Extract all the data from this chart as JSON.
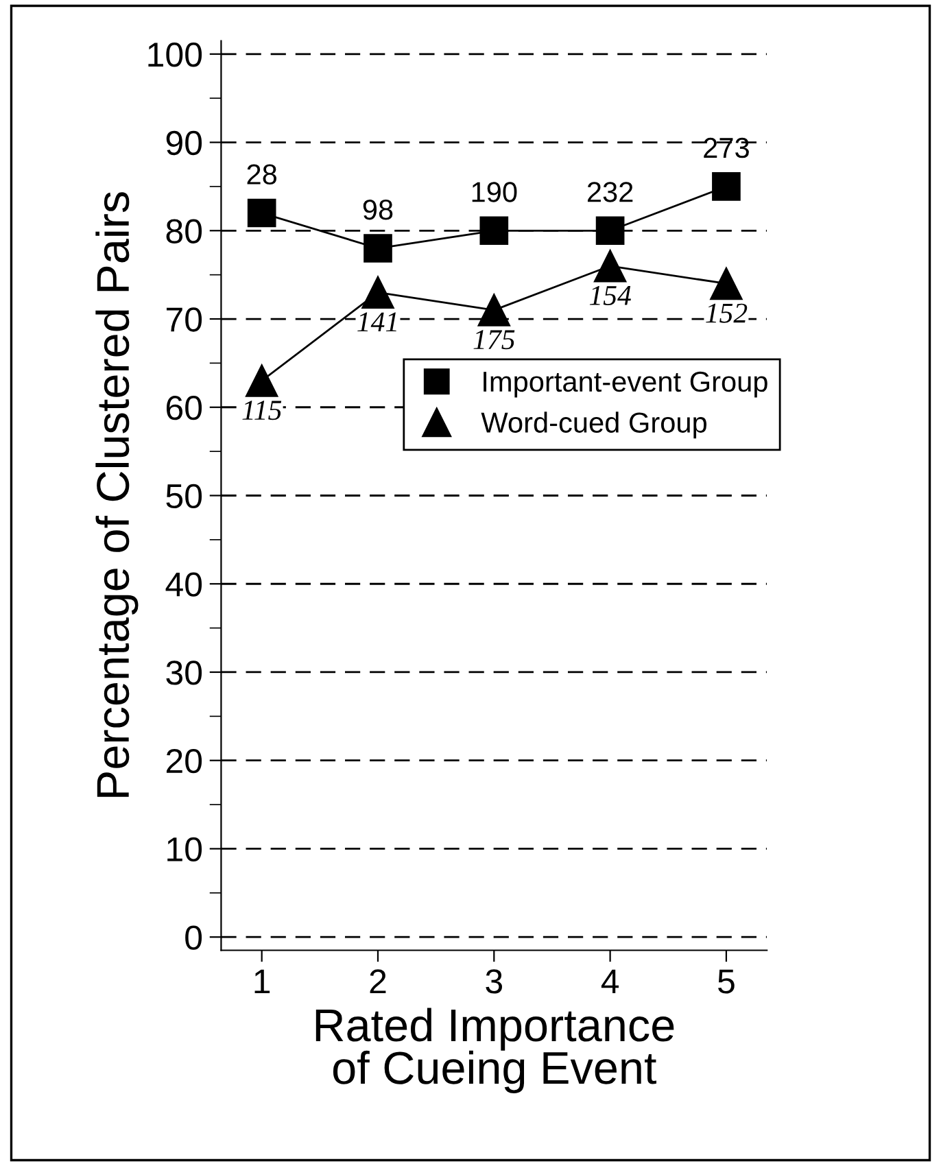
{
  "chart_data": {
    "type": "line",
    "xlabel": "Rated Importance\nof Cueing Event",
    "ylabel": "Percentage of Clustered Pairs",
    "x": [
      1,
      2,
      3,
      4,
      5
    ],
    "series": [
      {
        "name": "Important-event Group",
        "color": "#000000",
        "marker": "square",
        "values": [
          82,
          78,
          80,
          80,
          85
        ]
      },
      {
        "name": "Word-cued Group",
        "color": "#000000",
        "marker": "triangle",
        "values": [
          63,
          73,
          71,
          76,
          74
        ]
      }
    ],
    "annotations": [
      {
        "text": "28",
        "x": 1,
        "y": 82
      },
      {
        "text": "98",
        "x": 2,
        "y": 78
      },
      {
        "text": "190",
        "x": 3,
        "y": 80
      },
      {
        "text": "232",
        "x": 4,
        "y": 80
      },
      {
        "text": "273",
        "x": 5,
        "y": 85
      },
      {
        "text": "115",
        "x": 1,
        "y": 63
      },
      {
        "text": "141",
        "x": 2,
        "y": 73
      },
      {
        "text": "175",
        "x": 3,
        "y": 71
      },
      {
        "text": "154",
        "x": 4,
        "y": 76
      },
      {
        "text": "152",
        "x": 5,
        "y": 74
      }
    ],
    "xlim": [
      0.65,
      5.35
    ],
    "xticks": [
      1,
      2,
      3,
      4,
      5
    ],
    "ylim": [
      -1.5,
      101.5
    ],
    "yticks": [
      0,
      {
        "value": 5,
        "label": null
      },
      10,
      {
        "value": 15,
        "label": null
      },
      20,
      {
        "value": 25,
        "label": null
      },
      30,
      {
        "value": 35,
        "label": null
      },
      40,
      {
        "value": 45,
        "label": null
      },
      50,
      {
        "value": 55,
        "label": null
      },
      60,
      {
        "value": 65,
        "label": null
      },
      70,
      {
        "value": 75,
        "label": null
      },
      80,
      {
        "value": 85,
        "label": null
      },
      90,
      {
        "value": 95,
        "label": null
      },
      100
    ],
    "grid": "y",
    "legend": "right",
    "line_style": "solid"
  }
}
